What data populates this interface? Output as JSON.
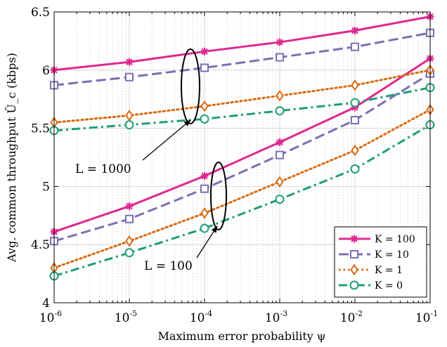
{
  "chart_data": {
    "type": "line",
    "xlabel": "Maximum error probability ψ",
    "ylabel": "Avg. common throughput Ū_c (kbps)",
    "x_scale": "log",
    "xlim": [
      1e-06,
      0.1
    ],
    "ylim": [
      4,
      6.5
    ],
    "grid": true,
    "legend_position": "bottom-right",
    "x": [
      1e-06,
      1e-05,
      0.0001,
      0.001,
      0.01,
      0.1
    ],
    "x_ticks": [
      {
        "value": 1e-06,
        "base": "10",
        "exp": "-6"
      },
      {
        "value": 1e-05,
        "base": "10",
        "exp": "-5"
      },
      {
        "value": 0.0001,
        "base": "10",
        "exp": "-4"
      },
      {
        "value": 0.001,
        "base": "10",
        "exp": "-3"
      },
      {
        "value": 0.01,
        "base": "10",
        "exp": "-2"
      },
      {
        "value": 0.1,
        "base": "10",
        "exp": "-1"
      }
    ],
    "y_ticks": [
      {
        "value": 4,
        "label": "4"
      },
      {
        "value": 4.5,
        "label": "4.5"
      },
      {
        "value": 5,
        "label": "5"
      },
      {
        "value": 5.5,
        "label": "5.5"
      },
      {
        "value": 6,
        "label": "6"
      },
      {
        "value": 6.5,
        "label": "6.5"
      }
    ],
    "series": [
      {
        "id": "k100",
        "name": "K = 100",
        "color": "#e0288f",
        "dash": "solid",
        "marker": "asterisk",
        "groups": [
          {
            "L": 1000,
            "values": [
              6.0,
              6.07,
              6.16,
              6.24,
              6.34,
              6.46
            ]
          },
          {
            "L": 100,
            "values": [
              4.61,
              4.83,
              5.09,
              5.38,
              5.68,
              6.1
            ]
          }
        ]
      },
      {
        "id": "k10",
        "name": "K = 10",
        "color": "#7b70b4",
        "dash": "dashed",
        "marker": "square",
        "groups": [
          {
            "L": 1000,
            "values": [
              5.87,
              5.94,
              6.02,
              6.11,
              6.2,
              6.32
            ]
          },
          {
            "L": 100,
            "values": [
              4.53,
              4.72,
              4.98,
              5.27,
              5.57,
              5.97
            ]
          }
        ]
      },
      {
        "id": "k1",
        "name": "K = 1",
        "color": "#d96a11",
        "dash": "dotted",
        "marker": "diamond",
        "groups": [
          {
            "L": 1000,
            "values": [
              5.55,
              5.61,
              5.69,
              5.78,
              5.87,
              6.0
            ]
          },
          {
            "L": 100,
            "values": [
              4.3,
              4.53,
              4.77,
              5.04,
              5.31,
              5.66
            ]
          }
        ]
      },
      {
        "id": "k0",
        "name": "K = 0",
        "color": "#1e9c78",
        "dash": "dashdot",
        "marker": "circle",
        "groups": [
          {
            "L": 1000,
            "values": [
              5.48,
              5.53,
              5.58,
              5.65,
              5.72,
              5.85
            ]
          },
          {
            "L": 100,
            "values": [
              4.23,
              4.43,
              4.64,
              4.89,
              5.15,
              5.53
            ]
          }
        ]
      }
    ],
    "annotations": [
      {
        "text": "L = 1000"
      },
      {
        "text": "L = 100"
      }
    ]
  }
}
